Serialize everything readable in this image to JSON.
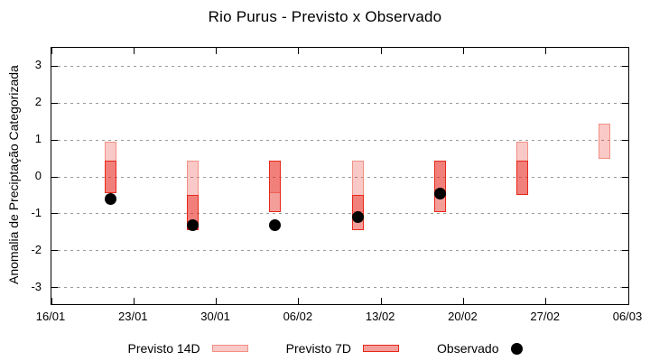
{
  "title": "Rio Purus - Previsto x Observado",
  "legend": {
    "p14": "Previsto 14D",
    "p7": "Previsto 7D",
    "obs": "Observado"
  },
  "chart_data": {
    "type": "range-bar",
    "title": "Rio Purus - Previsto x Observado",
    "xlabel": "",
    "ylabel": "Anomalia de Preciptação Categorizada",
    "xticks": [
      "16/01",
      "23/01",
      "30/01",
      "06/02",
      "13/02",
      "20/02",
      "27/02",
      "06/03"
    ],
    "yticks": [
      3,
      2,
      1,
      0,
      -1,
      -2,
      -3
    ],
    "ylim": [
      -3.45,
      3.5
    ],
    "x_range": [
      "16/01",
      "06/03"
    ],
    "grid": "horizontal-dotted",
    "legend_position": "bottom",
    "colors": {
      "previsto14_fill": "rgba(230,40,30,0.25)",
      "previsto14_border": "#f29084",
      "previsto7_fill": "rgba(230,40,30,0.45)",
      "previsto7_border": "#e6281a",
      "observado": "#000000"
    },
    "series": [
      {
        "name": "Previsto 14D",
        "type": "range",
        "ranges": [
          {
            "date": "21/01",
            "lo": -0.45,
            "hi": 0.95
          },
          {
            "date": "28/01",
            "lo": -1.45,
            "hi": 0.45
          },
          {
            "date": "04/02",
            "lo": -0.45,
            "hi": 0.45
          },
          {
            "date": "11/02",
            "lo": -0.95,
            "hi": 0.45
          },
          {
            "date": "18/02",
            "lo": -0.5,
            "hi": 0.45
          },
          {
            "date": "25/02",
            "lo": -0.5,
            "hi": 0.95
          },
          {
            "date": "04/03",
            "lo": 0.5,
            "hi": 1.45
          }
        ]
      },
      {
        "name": "Previsto 7D",
        "type": "range",
        "ranges": [
          {
            "date": "21/01",
            "lo": -0.45,
            "hi": 0.45
          },
          {
            "date": "28/01",
            "lo": -1.45,
            "hi": -0.5
          },
          {
            "date": "04/02",
            "lo": -0.95,
            "hi": 0.45
          },
          {
            "date": "11/02",
            "lo": -1.45,
            "hi": -0.5
          },
          {
            "date": "18/02",
            "lo": -0.95,
            "hi": 0.45
          },
          {
            "date": "25/02",
            "lo": -0.5,
            "hi": 0.45
          }
        ]
      },
      {
        "name": "Observado",
        "type": "scatter",
        "points": [
          {
            "date": "21/01",
            "y": -0.6
          },
          {
            "date": "28/01",
            "y": -1.3
          },
          {
            "date": "04/02",
            "y": -1.3
          },
          {
            "date": "11/02",
            "y": -1.1
          },
          {
            "date": "18/02",
            "y": -0.45
          }
        ]
      }
    ]
  }
}
